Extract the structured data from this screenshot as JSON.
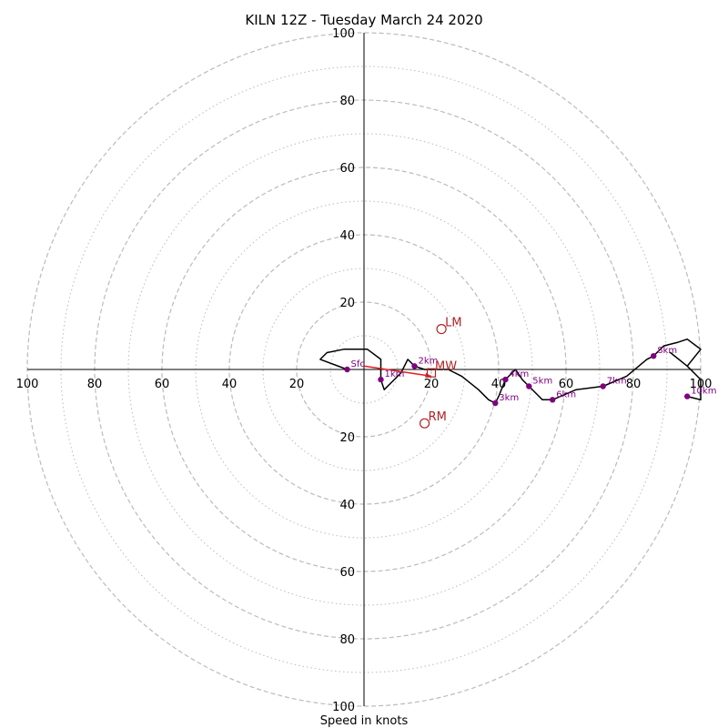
{
  "chart_data": {
    "type": "line",
    "title": "KILN 12Z - Tuesday March 24 2020",
    "xlabel": "Speed in knots",
    "ylabel": "",
    "xlim": [
      -100,
      100
    ],
    "ylim": [
      -100,
      100
    ],
    "ring_major": [
      20,
      40,
      60,
      80,
      100
    ],
    "ring_minor": [
      10,
      30,
      50,
      70,
      90
    ],
    "axis_ticks": [
      "100",
      "80",
      "60",
      "40",
      "20",
      "20",
      "40",
      "60",
      "80",
      "100"
    ],
    "axis_tick_values": [
      -100,
      -80,
      -60,
      -40,
      -20,
      20,
      40,
      60,
      80,
      100
    ],
    "colors": {
      "trace": "#000000",
      "height_marker": "#800080",
      "motion": "#b22222",
      "shear_vector": "#e02020",
      "ring": "#bbbbbb"
    },
    "trace": [
      {
        "u": -5,
        "v": 0
      },
      {
        "u": -13,
        "v": 3
      },
      {
        "u": -11,
        "v": 5
      },
      {
        "u": -6,
        "v": 6
      },
      {
        "u": 1,
        "v": 6
      },
      {
        "u": 5,
        "v": 3
      },
      {
        "u": 5,
        "v": 0
      },
      {
        "u": 5,
        "v": -3
      },
      {
        "u": 6,
        "v": -6
      },
      {
        "u": 9,
        "v": -3
      },
      {
        "u": 11,
        "v": -1
      },
      {
        "u": 13,
        "v": 3
      },
      {
        "u": 15,
        "v": 1
      },
      {
        "u": 18,
        "v": 0
      },
      {
        "u": 25,
        "v": 0
      },
      {
        "u": 29,
        "v": -2
      },
      {
        "u": 34,
        "v": -6
      },
      {
        "u": 37,
        "v": -9
      },
      {
        "u": 39,
        "v": -10
      },
      {
        "u": 40,
        "v": -8
      },
      {
        "u": 42,
        "v": -3
      },
      {
        "u": 45,
        "v": 0
      },
      {
        "u": 47,
        "v": -3
      },
      {
        "u": 49,
        "v": -5
      },
      {
        "u": 52,
        "v": -8
      },
      {
        "u": 53,
        "v": -9
      },
      {
        "u": 56,
        "v": -9
      },
      {
        "u": 63,
        "v": -6
      },
      {
        "u": 71,
        "v": -5
      },
      {
        "u": 78,
        "v": -2
      },
      {
        "u": 84,
        "v": 3
      },
      {
        "u": 86,
        "v": 4
      },
      {
        "u": 89,
        "v": 7
      },
      {
        "u": 93,
        "v": 8
      },
      {
        "u": 96,
        "v": 9
      },
      {
        "u": 100,
        "v": 6
      },
      {
        "u": 96,
        "v": 1
      },
      {
        "u": 91,
        "v": 5
      },
      {
        "u": 96,
        "v": 1
      },
      {
        "u": 100,
        "v": -3
      },
      {
        "u": 100,
        "v": -9
      },
      {
        "u": 96,
        "v": -8
      }
    ],
    "height_markers": [
      {
        "label": "Sfc",
        "u": -5,
        "v": 0
      },
      {
        "label": "1km",
        "u": 5,
        "v": -3
      },
      {
        "label": "2km",
        "u": 15,
        "v": 1
      },
      {
        "label": "3km",
        "u": 39,
        "v": -10
      },
      {
        "label": "4km",
        "u": 42,
        "v": -3
      },
      {
        "label": "5km",
        "u": 49,
        "v": -5
      },
      {
        "label": "6km",
        "u": 56,
        "v": -9
      },
      {
        "label": "7km",
        "u": 71,
        "v": -5
      },
      {
        "label": "8km",
        "u": 86,
        "v": 4
      },
      {
        "label": "10km",
        "u": 96,
        "v": -8
      }
    ],
    "motions": [
      {
        "label": "LM",
        "u": 23,
        "v": 12,
        "shape": "circle"
      },
      {
        "label": "RM",
        "u": 18,
        "v": -16,
        "shape": "circle"
      },
      {
        "label": "MW",
        "u": 20,
        "v": -1,
        "shape": "square"
      }
    ],
    "shear_vector": {
      "from_u": 0,
      "from_v": 1,
      "to_u": 20,
      "to_v": -2
    }
  }
}
